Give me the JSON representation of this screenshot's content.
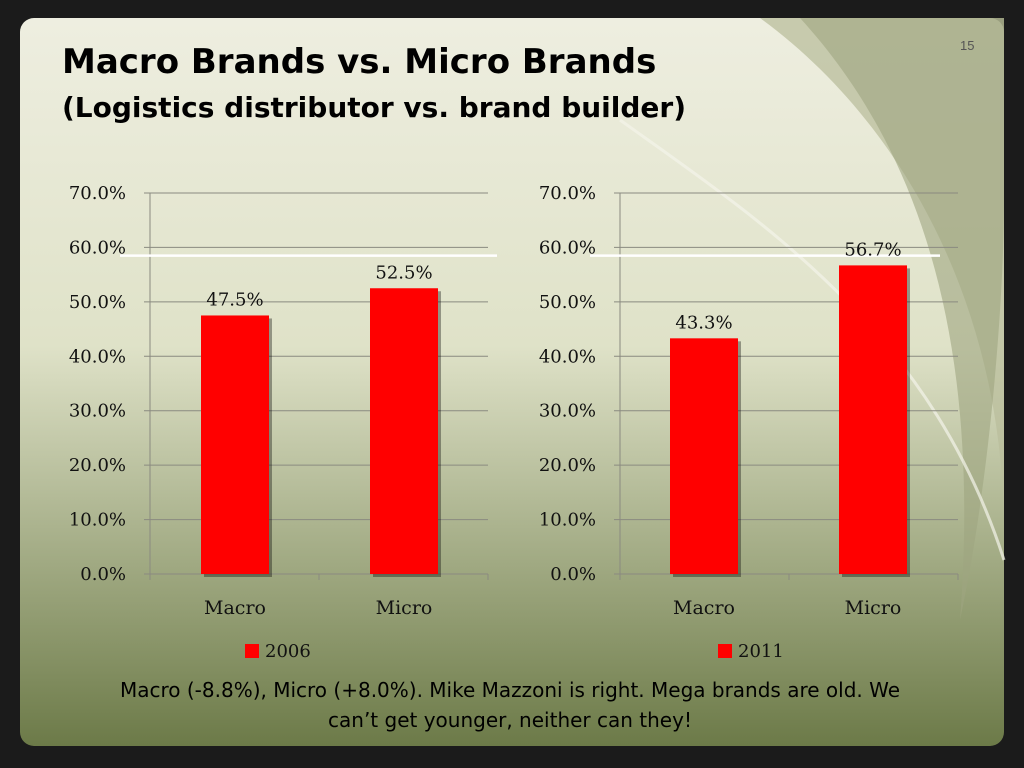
{
  "slide": {
    "title": "Macro Brands vs. Micro Brands",
    "subtitle": "(Logistics distributor vs. brand builder)",
    "page_number": "15",
    "caption": "Macro (-8.8%), Micro (+8.0%). Mike Mazzoni is right. Mega brands are old. We can’t get younger, neither can they!"
  },
  "colors": {
    "bar": "#ff0000",
    "background_light": "#e8ead8",
    "background_dark": "#5f6b40",
    "frame": "#1b1b1b"
  },
  "chart_data": [
    {
      "type": "bar",
      "categories": [
        "Macro",
        "Micro"
      ],
      "series": [
        {
          "name": "2006",
          "values": [
            47.5,
            52.5
          ]
        }
      ],
      "data_labels": [
        "47.5%",
        "52.5%"
      ],
      "ylim": [
        0,
        70
      ],
      "yticks": [
        "0.0%",
        "10.0%",
        "20.0%",
        "30.0%",
        "40.0%",
        "50.0%",
        "60.0%",
        "70.0%"
      ],
      "reference_line": 58.5,
      "grid": true,
      "legend": "bottom"
    },
    {
      "type": "bar",
      "categories": [
        "Macro",
        "Micro"
      ],
      "series": [
        {
          "name": "2011",
          "values": [
            43.3,
            56.7
          ]
        }
      ],
      "data_labels": [
        "43.3%",
        "56.7%"
      ],
      "ylim": [
        0,
        70
      ],
      "yticks": [
        "0.0%",
        "10.0%",
        "20.0%",
        "30.0%",
        "40.0%",
        "50.0%",
        "60.0%",
        "70.0%"
      ],
      "reference_line": 58.5,
      "grid": true,
      "legend": "bottom"
    }
  ]
}
